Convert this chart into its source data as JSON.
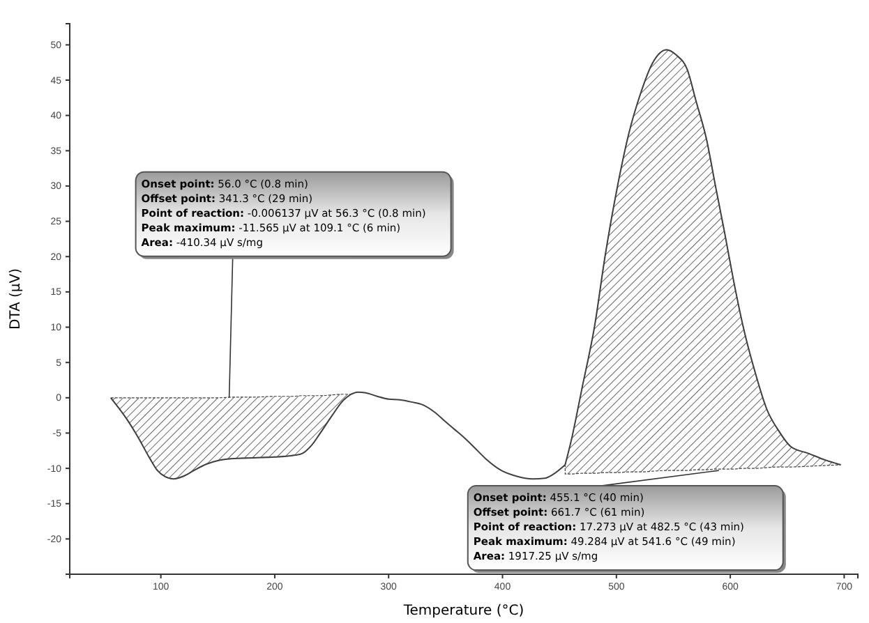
{
  "chart_data": {
    "type": "line",
    "xlabel": "Temperature (°C)",
    "ylabel": "DTA (µV)",
    "xlim": [
      20,
      712
    ],
    "xticks": [
      100,
      200,
      300,
      400,
      500,
      600,
      700
    ],
    "ylim": [
      -25,
      53
    ],
    "yticks": [
      -20,
      -15,
      -10,
      -5,
      0,
      5,
      10,
      15,
      20,
      25,
      30,
      35,
      40,
      45,
      50
    ],
    "grid": false,
    "series": [
      {
        "color": "#404040",
        "x": [
          56,
          70,
          80,
          90,
          97,
          104,
          111,
          120,
          129,
          140,
          150,
          165,
          182,
          200,
          215,
          224,
          232,
          240,
          250,
          260,
          267
        ],
        "values": [
          0,
          -3,
          -5.6,
          -8.5,
          -10.3,
          -11.2,
          -11.5,
          -11.1,
          -10.3,
          -9.4,
          -8.9,
          -8.6,
          -8.5,
          -8.4,
          -8.2,
          -7.9,
          -6.8,
          -5,
          -2.6,
          -0.4,
          0.5
        ],
        "lower": [
          0,
          -3,
          -5.6,
          -8.5,
          -10.3,
          -11.2,
          -11.5,
          -11.1,
          -10.3,
          -9.4,
          -8.9,
          -8.6,
          -8.5,
          -8.4,
          -8.2,
          -7.9,
          -6.8,
          -5,
          -2.6,
          -0.4,
          0.5
        ],
        "upper": [
          0,
          0,
          0,
          0,
          0,
          0,
          0,
          0,
          0,
          0,
          0,
          0.1,
          0.1,
          0.2,
          0.2,
          0.3,
          0.3,
          0.3,
          0.4,
          0.5,
          0.5
        ]
      },
      {
        "color": "#404040",
        "x": [
          267,
          273,
          280,
          290,
          300,
          310,
          320,
          330,
          340,
          350,
          358,
          366,
          375,
          385,
          399,
          412,
          427,
          437,
          444,
          455
        ],
        "values": [
          0.5,
          0.8,
          0.7,
          0.2,
          -0.2,
          -0.3,
          -0.6,
          -1,
          -2,
          -3.4,
          -4.5,
          -5.6,
          -7,
          -8.6,
          -10.3,
          -11.1,
          -11.5,
          -11.4,
          -10.9,
          -9.5
        ]
      },
      {
        "color": "#404040",
        "x": [
          455,
          460,
          470,
          481,
          490,
          501,
          511,
          521,
          532,
          544,
          553,
          562,
          570,
          579,
          587,
          595,
          603,
          611,
          622,
          632,
          643,
          653,
          669,
          683,
          697
        ],
        "values": [
          -9.5,
          -6.3,
          1.5,
          10.3,
          20,
          30,
          37.5,
          43,
          47.5,
          49.3,
          48.5,
          46.6,
          42,
          36.7,
          30,
          23.4,
          16.5,
          10.3,
          3.5,
          -1.6,
          -4.8,
          -6.9,
          -7.9,
          -8.8,
          -9.5
        ],
        "lower": [
          -10.8,
          -10.8,
          -10.7,
          -10.7,
          -10.6,
          -10.6,
          -10.5,
          -10.5,
          -10.4,
          -10.3,
          -10.3,
          -10.3,
          -10.2,
          -10.2,
          -10.1,
          -10.1,
          -10.1,
          -10,
          -10,
          -9.9,
          -9.8,
          -9.8,
          -9.7,
          -9.6,
          -9.5
        ],
        "upper": [
          -9.5,
          -6.3,
          1.5,
          10.3,
          20,
          30,
          37.5,
          43,
          47.5,
          49.3,
          48.5,
          46.6,
          42,
          36.7,
          30,
          23.4,
          16.5,
          10.3,
          3.5,
          -1.6,
          -4.8,
          -6.9,
          -7.9,
          -8.8,
          -9.5
        ]
      }
    ],
    "annotations": [
      "Onset point: 56.0 °C (0.8 min)",
      "Offset point: 341.3 °C (29 min)",
      "Point of reaction: -0.006137 µV at 56.3 °C (0.8 min)",
      "Peak maximum: -11.565 µV at 109.1 °C (6 min)",
      {
        "text": "Area: -410.34 µV s/mg",
        "x": 160,
        "y": 0
      },
      {
        "text": "Onset point: 455.1 °C (40 min)",
        "x": 590,
        "y": -10.3
      },
      "Offset point: 661.7 °C (61 min)",
      "Point of reaction: 17.273 µV at 482.5 °C (43 min)",
      "Peak maximum: 49.284 µV at 541.6 °C (49 min)",
      "Area: 1917.25 µV s/mg"
    ]
  }
}
